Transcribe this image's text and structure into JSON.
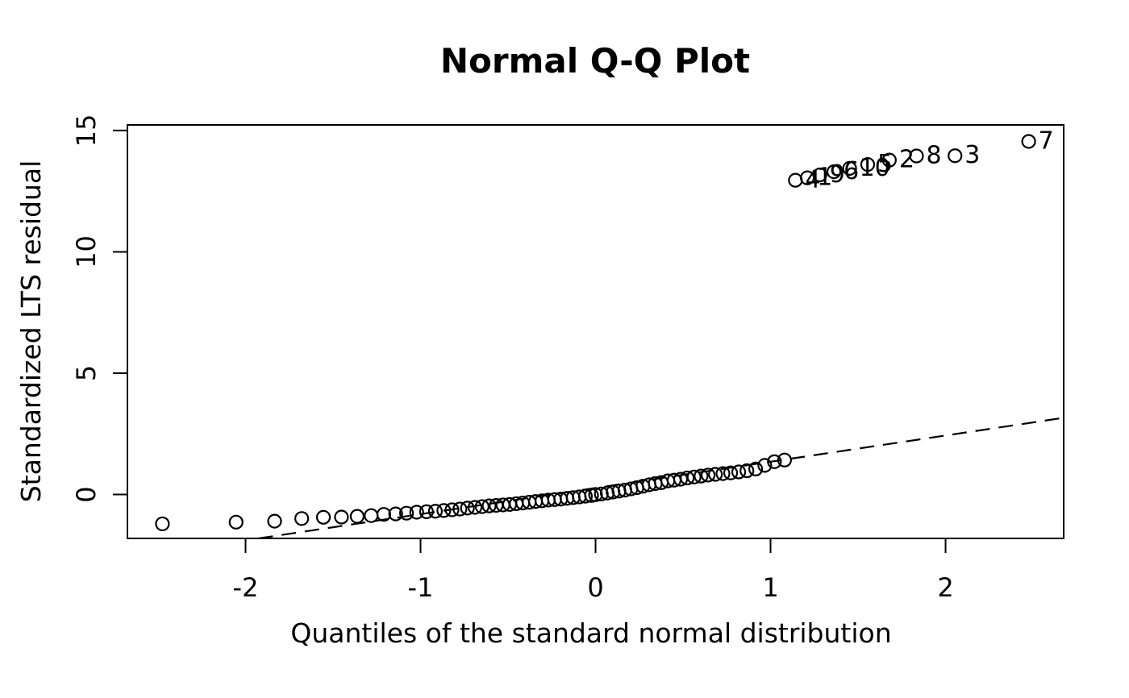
{
  "chart_data": {
    "type": "scatter",
    "title": "Normal Q-Q Plot",
    "xlabel": "Quantiles of the standard normal distribution",
    "ylabel": "Standardized LTS residual",
    "xlim": [
      -2.675,
      2.675
    ],
    "ylim": [
      -1.81,
      15.23
    ],
    "x_ticks": [
      -2,
      -1,
      0,
      1,
      2
    ],
    "y_ticks": [
      0,
      5,
      10,
      15
    ],
    "grid": false,
    "legend": "none",
    "marker": "open-circle",
    "colors": {
      "foreground": "#000000",
      "background": "#ffffff"
    },
    "reference_line": {
      "style": "dashed",
      "x1": -1.926,
      "y1": -1.81,
      "x2": 2.675,
      "y2": 3.16
    },
    "points": [
      {
        "x": -2.475,
        "y": -1.21
      },
      {
        "x": -2.054,
        "y": -1.14
      },
      {
        "x": -1.834,
        "y": -1.1
      },
      {
        "x": -1.679,
        "y": -0.99
      },
      {
        "x": -1.555,
        "y": -0.94
      },
      {
        "x": -1.452,
        "y": -0.93
      },
      {
        "x": -1.362,
        "y": -0.9
      },
      {
        "x": -1.282,
        "y": -0.87
      },
      {
        "x": -1.21,
        "y": -0.82
      },
      {
        "x": -1.142,
        "y": -0.8
      },
      {
        "x": -1.08,
        "y": -0.77
      },
      {
        "x": -1.022,
        "y": -0.73
      },
      {
        "x": -0.966,
        "y": -0.71
      },
      {
        "x": -0.915,
        "y": -0.69
      },
      {
        "x": -0.867,
        "y": -0.66
      },
      {
        "x": -0.82,
        "y": -0.63
      },
      {
        "x": -0.775,
        "y": -0.6
      },
      {
        "x": -0.732,
        "y": -0.56
      },
      {
        "x": -0.689,
        "y": -0.53
      },
      {
        "x": -0.648,
        "y": -0.5
      },
      {
        "x": -0.608,
        "y": -0.47
      },
      {
        "x": -0.568,
        "y": -0.45
      },
      {
        "x": -0.529,
        "y": -0.43
      },
      {
        "x": -0.491,
        "y": -0.41
      },
      {
        "x": -0.453,
        "y": -0.38
      },
      {
        "x": -0.416,
        "y": -0.35
      },
      {
        "x": -0.379,
        "y": -0.32
      },
      {
        "x": -0.343,
        "y": -0.29
      },
      {
        "x": -0.306,
        "y": -0.26
      },
      {
        "x": -0.27,
        "y": -0.23
      },
      {
        "x": -0.234,
        "y": -0.21
      },
      {
        "x": -0.199,
        "y": -0.19
      },
      {
        "x": -0.163,
        "y": -0.16
      },
      {
        "x": -0.128,
        "y": -0.13
      },
      {
        "x": -0.093,
        "y": -0.1
      },
      {
        "x": -0.058,
        "y": -0.07
      },
      {
        "x": -0.023,
        "y": -0.04
      },
      {
        "x": 0.0,
        "y": -0.01
      },
      {
        "x": 0.033,
        "y": 0.02
      },
      {
        "x": 0.067,
        "y": 0.06
      },
      {
        "x": 0.1,
        "y": 0.1
      },
      {
        "x": 0.134,
        "y": 0.14
      },
      {
        "x": 0.168,
        "y": 0.18
      },
      {
        "x": 0.202,
        "y": 0.23
      },
      {
        "x": 0.236,
        "y": 0.28
      },
      {
        "x": 0.271,
        "y": 0.34
      },
      {
        "x": 0.306,
        "y": 0.4
      },
      {
        "x": 0.341,
        "y": 0.45
      },
      {
        "x": 0.376,
        "y": 0.49
      },
      {
        "x": 0.413,
        "y": 0.56
      },
      {
        "x": 0.449,
        "y": 0.59
      },
      {
        "x": 0.486,
        "y": 0.63
      },
      {
        "x": 0.524,
        "y": 0.68
      },
      {
        "x": 0.563,
        "y": 0.72
      },
      {
        "x": 0.603,
        "y": 0.76
      },
      {
        "x": 0.643,
        "y": 0.8
      },
      {
        "x": 0.685,
        "y": 0.83
      },
      {
        "x": 0.728,
        "y": 0.86
      },
      {
        "x": 0.772,
        "y": 0.89
      },
      {
        "x": 0.818,
        "y": 0.93
      },
      {
        "x": 0.865,
        "y": 0.98
      },
      {
        "x": 0.915,
        "y": 1.05
      },
      {
        "x": 0.967,
        "y": 1.2
      },
      {
        "x": 1.022,
        "y": 1.35
      },
      {
        "x": 1.08,
        "y": 1.42
      },
      {
        "x": 1.142,
        "y": 12.95,
        "label": "4"
      },
      {
        "x": 1.21,
        "y": 13.05,
        "label": "1"
      },
      {
        "x": 1.282,
        "y": 13.17,
        "label": "9"
      },
      {
        "x": 1.362,
        "y": 13.3,
        "label": "6"
      },
      {
        "x": 1.452,
        "y": 13.44,
        "label": "10"
      },
      {
        "x": 1.555,
        "y": 13.6,
        "label": "5"
      },
      {
        "x": 1.679,
        "y": 13.78,
        "label": "2"
      },
      {
        "x": 1.834,
        "y": 13.95,
        "label": "8"
      },
      {
        "x": 2.054,
        "y": 13.96,
        "label": "3"
      },
      {
        "x": 2.475,
        "y": 14.55,
        "label": "7"
      }
    ]
  }
}
